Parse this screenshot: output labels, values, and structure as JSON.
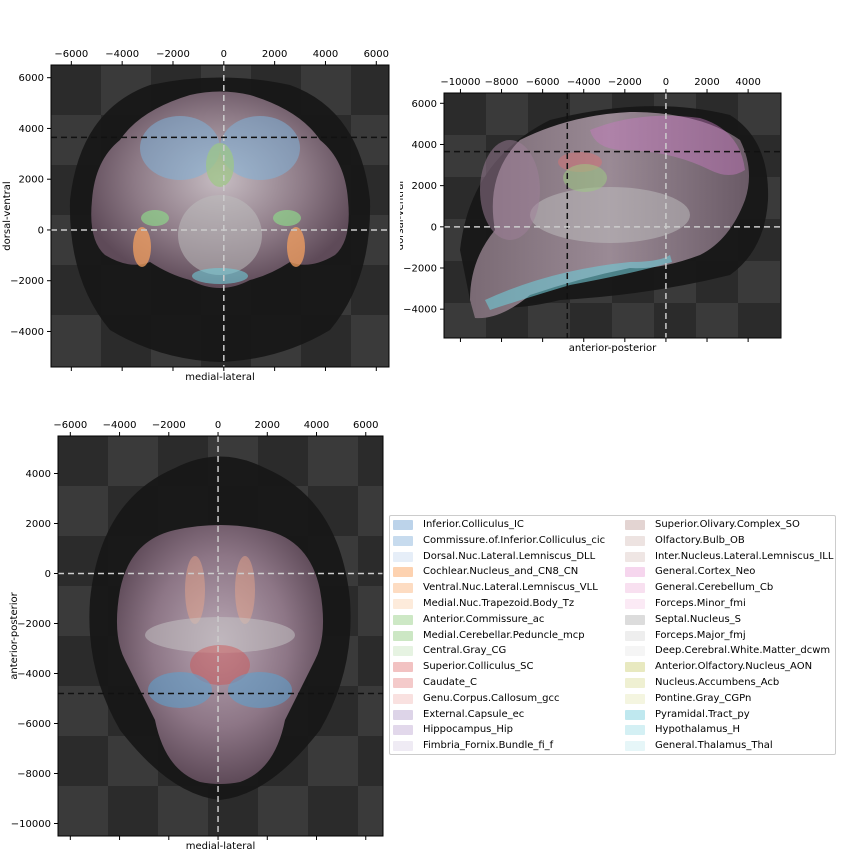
{
  "chart_data": [
    {
      "type": "image",
      "view": "coronal",
      "xlabel": "medial-lateral",
      "ylabel": "dorsal-ventral",
      "x_ticks": [
        -6000,
        -4000,
        -2000,
        0,
        2000,
        4000,
        6000
      ],
      "y_ticks": [
        6000,
        4000,
        2000,
        0,
        -2000,
        -4000
      ],
      "x_tick_labels": [
        "−6000",
        "−4000",
        "−2000",
        "0",
        "2000",
        "4000",
        "6000"
      ],
      "y_tick_labels": [
        "6000",
        "4000",
        "2000",
        "0",
        "−2000",
        "−4000"
      ],
      "xlim": [
        -6800,
        6500
      ],
      "ylim": [
        -5400,
        6500
      ],
      "crosshair_x": 0,
      "crosshair_y": [
        0,
        3650
      ]
    },
    {
      "type": "image",
      "view": "sagittal",
      "xlabel": "anterior-posterior",
      "ylabel": "dorsal-ventral",
      "x_ticks": [
        -10000,
        -8000,
        -6000,
        -4000,
        -2000,
        0,
        2000,
        4000
      ],
      "y_ticks": [
        6000,
        4000,
        2000,
        0,
        -2000,
        -4000
      ],
      "x_tick_labels": [
        "−10000",
        "−8000",
        "−6000",
        "−4000",
        "−2000",
        "0",
        "2000",
        "4000"
      ],
      "y_tick_labels": [
        "6000",
        "4000",
        "2000",
        "0",
        "−2000",
        "−4000"
      ],
      "xlim": [
        -10800,
        5600
      ],
      "ylim": [
        -5400,
        6500
      ],
      "crosshair_x": [
        0,
        -4800
      ],
      "crosshair_y": [
        0,
        3650
      ]
    },
    {
      "type": "image",
      "view": "axial",
      "xlabel": "medial-lateral",
      "ylabel": "anterior-posterior",
      "x_ticks": [
        -6000,
        -4000,
        -2000,
        0,
        2000,
        4000,
        6000
      ],
      "y_ticks": [
        4000,
        2000,
        0,
        -2000,
        -4000,
        -6000,
        -8000,
        -10000
      ],
      "x_tick_labels": [
        "−6000",
        "−4000",
        "−2000",
        "0",
        "2000",
        "4000",
        "6000"
      ],
      "y_tick_labels": [
        "4000",
        "2000",
        "0",
        "−2000",
        "−4000",
        "−6000",
        "−8000",
        "−10000"
      ],
      "xlim": [
        -6500,
        6700
      ],
      "ylim": [
        -10500,
        5500
      ],
      "crosshair_x": 0,
      "crosshair_y": [
        0,
        -4800
      ]
    }
  ],
  "legend": {
    "placement": "lower-right",
    "left": [
      {
        "label": "Inferior.Colliculus_IC",
        "color": "#bcd3ea"
      },
      {
        "label": "Commissure.of.Inferior.Colliculus_cic",
        "color": "#c7dbee"
      },
      {
        "label": "Dorsal.Nuc.Lateral.Lemniscus_DLL",
        "color": "#e6eef8"
      },
      {
        "label": "Cochlear.Nucleus_and_CN8_CN",
        "color": "#fdd2b0"
      },
      {
        "label": "Ventral.Nuc.Lateral.Lemniscus_VLL",
        "color": "#fddcc2"
      },
      {
        "label": "Medial.Nuc.Trapezoid.Body_Tz",
        "color": "#fdebdb"
      },
      {
        "label": "Anterior.Commissure_ac",
        "color": "#cde8c5"
      },
      {
        "label": "Medial.Cerebellar.Peduncle_mcp",
        "color": "#cce7c4"
      },
      {
        "label": "Central.Gray_CG",
        "color": "#e6f3e2"
      },
      {
        "label": "Superior.Colliculus_SC",
        "color": "#f2c2c2"
      },
      {
        "label": "Caudate_C",
        "color": "#f4caca"
      },
      {
        "label": "Genu.Corpus.Callosum_gcc",
        "color": "#f9e1e0"
      },
      {
        "label": "External.Capsule_ec",
        "color": "#ddd4e8"
      },
      {
        "label": "Hippocampus_Hip",
        "color": "#e2d8eb"
      },
      {
        "label": "Fimbria_Fornix.Bundle_fi_f",
        "color": "#efebf4"
      }
    ],
    "right": [
      {
        "label": "Superior.Olivary.Complex_SO",
        "color": "#e3d4d2"
      },
      {
        "label": "Olfactory.Bulb_OB",
        "color": "#ede3e1"
      },
      {
        "label": "Inter.Nucleus.Lateral.Lemniscus_ILL",
        "color": "#efe6e4"
      },
      {
        "label": "General.Cortex_Neo",
        "color": "#f6d6ee"
      },
      {
        "label": "General.Cerebellum_Cb",
        "color": "#f8e0f0"
      },
      {
        "label": "Forceps.Minor_fmi",
        "color": "#fbeaf5"
      },
      {
        "label": "Septal.Nucleus_S",
        "color": "#dcdcdc"
      },
      {
        "label": "Forceps.Major_fmj",
        "color": "#eeeeee"
      },
      {
        "label": "Deep.Cerebral.White.Matter_dcwm",
        "color": "#f5f5f5"
      },
      {
        "label": "Anterior.Olfactory.Nucleus_AON",
        "color": "#e8e9c0"
      },
      {
        "label": "Nucleus.Accumbens_Acb",
        "color": "#eff0d2"
      },
      {
        "label": "Pontine.Gray_CGPn",
        "color": "#f4f5e0"
      },
      {
        "label": "Pyramidal.Tract_py",
        "color": "#bfe8ef"
      },
      {
        "label": "Hypothalamus_H",
        "color": "#d4f0f4"
      },
      {
        "label": "General.Thalamus_Thal",
        "color": "#e6f6f8"
      }
    ]
  }
}
